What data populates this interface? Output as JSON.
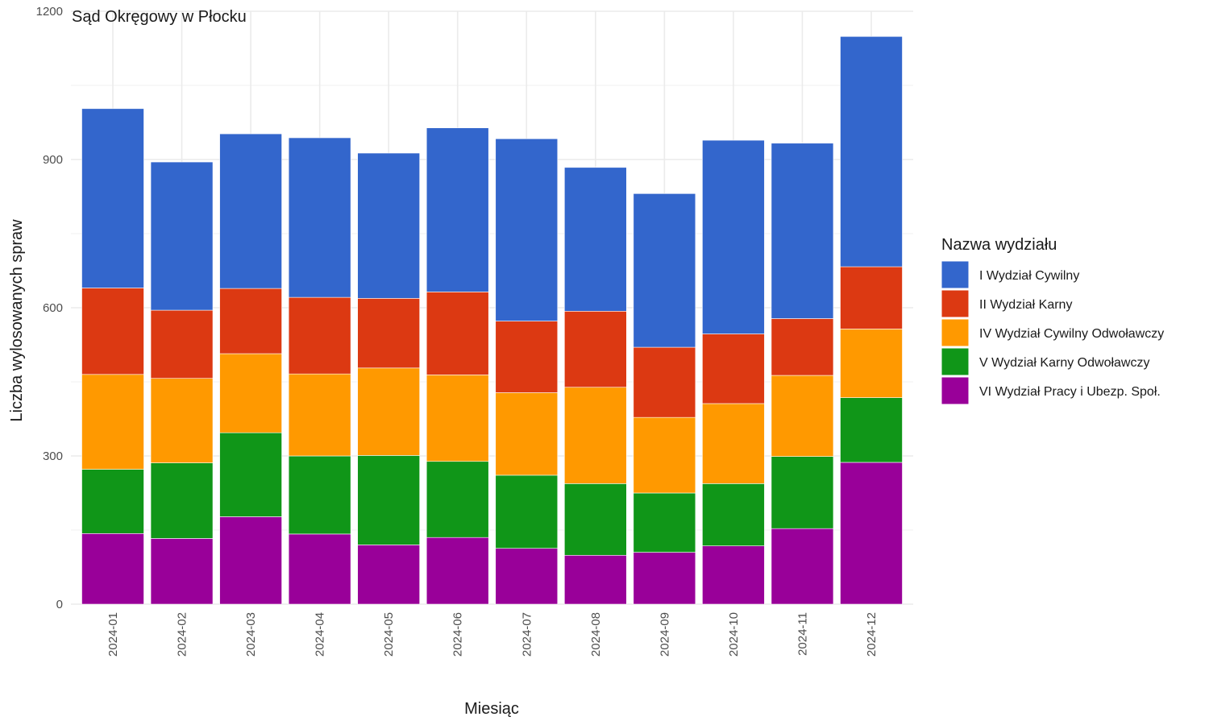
{
  "chart_data": {
    "type": "bar",
    "stacked": true,
    "title": "Sąd Okręgowy w Płocku",
    "xlabel": "Miesiąc",
    "ylabel": "Liczba wylosowanych spraw",
    "ylim": [
      0,
      1200
    ],
    "yticks": [
      "0",
      "300",
      "600",
      "900",
      "1200"
    ],
    "grid": true,
    "legend_title": "Nazwa wydziału",
    "legend_position": "right",
    "categories": [
      "2024-01",
      "2024-02",
      "2024-03",
      "2024-04",
      "2024-05",
      "2024-06",
      "2024-07",
      "2024-08",
      "2024-09",
      "2024-10",
      "2024-11",
      "2024-12"
    ],
    "series": [
      {
        "name": "VI Wydział Pracy i Ubezp. Społ.",
        "color": "#990099",
        "values": [
          143,
          133,
          177,
          142,
          120,
          135,
          113,
          99,
          105,
          118,
          153,
          287
        ]
      },
      {
        "name": "V Wydział Karny Odwoławczy",
        "color": "#109618",
        "values": [
          130,
          153,
          170,
          158,
          181,
          154,
          148,
          145,
          120,
          126,
          146,
          131
        ]
      },
      {
        "name": "IV Wydział Cywilny Odwoławczy",
        "color": "#FF9900",
        "values": [
          192,
          171,
          160,
          166,
          177,
          175,
          167,
          195,
          153,
          162,
          164,
          139
        ]
      },
      {
        "name": "II Wydział Karny",
        "color": "#DC3912",
        "values": [
          175,
          138,
          132,
          155,
          141,
          168,
          145,
          154,
          142,
          141,
          115,
          126
        ]
      },
      {
        "name": "I Wydział Cywilny",
        "color": "#3366CC",
        "values": [
          363,
          300,
          313,
          323,
          294,
          332,
          369,
          291,
          311,
          392,
          355,
          466
        ]
      }
    ],
    "legend_order": [
      "I Wydział Cywilny",
      "II Wydział Karny",
      "IV Wydział Cywilny Odwoławczy",
      "V Wydział Karny Odwoławczy",
      "VI Wydział Pracy i Ubezp. Społ."
    ]
  }
}
